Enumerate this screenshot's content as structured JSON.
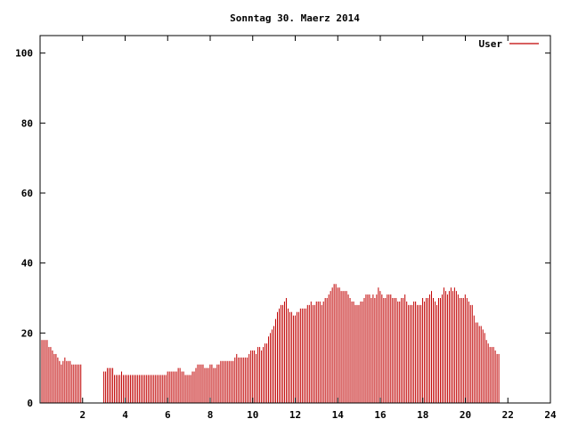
{
  "colors": {
    "series": "#c00000",
    "axis": "#000000",
    "background": "#ffffff"
  },
  "chart_data": {
    "type": "bar",
    "title": "Sonntag 30. Maerz 2014",
    "xlabel": "",
    "ylabel": "",
    "xlim": [
      0,
      24
    ],
    "ylim": [
      0,
      105
    ],
    "x_ticks": [
      2,
      4,
      6,
      8,
      10,
      12,
      14,
      16,
      18,
      20,
      22,
      24
    ],
    "x_tick_labels": [
      "2",
      "4",
      "6",
      "8",
      "10",
      "12",
      "14",
      "16",
      "18",
      "20",
      "22",
      "24"
    ],
    "y_ticks": [
      0,
      20,
      40,
      60,
      80,
      100
    ],
    "y_tick_labels": [
      "0",
      "20",
      "40",
      "60",
      "80",
      "100"
    ],
    "grid": false,
    "legend_position": "top-right",
    "series": [
      {
        "name": "User",
        "interval_hours": 0.0833,
        "values": [
          20,
          18,
          18,
          18,
          18,
          16,
          16,
          15,
          14,
          14,
          13,
          12,
          11,
          12,
          13,
          12,
          12,
          12,
          11,
          11,
          11,
          11,
          11,
          11,
          null,
          null,
          null,
          null,
          null,
          null,
          null,
          null,
          null,
          null,
          null,
          null,
          9,
          9,
          10,
          10,
          10,
          10,
          8,
          8,
          8,
          8,
          9,
          8,
          8,
          8,
          8,
          8,
          8,
          8,
          8,
          8,
          8,
          8,
          8,
          8,
          8,
          8,
          8,
          8,
          8,
          8,
          8,
          8,
          8,
          8,
          8,
          8,
          9,
          9,
          9,
          9,
          9,
          9,
          10,
          10,
          9,
          9,
          8,
          8,
          8,
          8,
          9,
          9,
          10,
          11,
          11,
          11,
          11,
          10,
          10,
          10,
          11,
          11,
          10,
          10,
          11,
          11,
          12,
          12,
          12,
          12,
          12,
          12,
          12,
          12,
          13,
          14,
          13,
          13,
          13,
          13,
          13,
          13,
          14,
          15,
          15,
          15,
          14,
          16,
          16,
          15,
          16,
          17,
          17,
          19,
          20,
          21,
          22,
          24,
          26,
          27,
          28,
          28,
          29,
          30,
          27,
          26,
          26,
          25,
          25,
          26,
          26,
          27,
          27,
          27,
          27,
          28,
          28,
          29,
          28,
          28,
          29,
          29,
          29,
          28,
          29,
          30,
          30,
          31,
          32,
          33,
          34,
          34,
          33,
          33,
          32,
          32,
          32,
          32,
          31,
          30,
          29,
          29,
          28,
          28,
          28,
          29,
          29,
          30,
          31,
          31,
          31,
          30,
          31,
          30,
          31,
          33,
          32,
          31,
          30,
          30,
          31,
          31,
          31,
          30,
          30,
          30,
          29,
          29,
          30,
          30,
          31,
          29,
          28,
          28,
          28,
          29,
          29,
          28,
          28,
          28,
          30,
          29,
          30,
          30,
          31,
          32,
          30,
          29,
          28,
          30,
          30,
          31,
          33,
          32,
          31,
          32,
          33,
          32,
          33,
          32,
          31,
          30,
          30,
          30,
          31,
          30,
          29,
          28,
          28,
          25,
          23,
          23,
          22,
          22,
          21,
          20,
          18,
          17,
          16,
          16,
          16,
          15,
          14,
          14
        ]
      }
    ]
  }
}
